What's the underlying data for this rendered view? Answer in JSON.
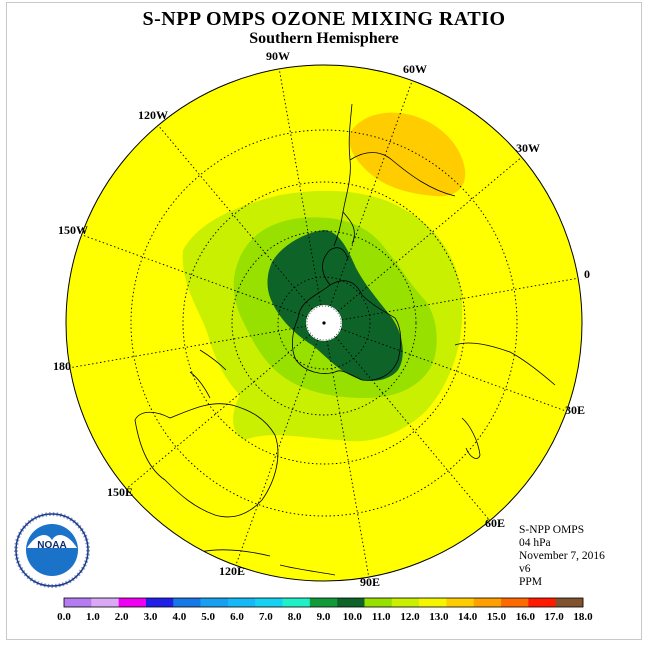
{
  "title": "S-NPP OMPS OZONE MIXING RATIO",
  "subtitle": "Southern Hemisphere",
  "longitude_labels": [
    {
      "lon": "90W"
    },
    {
      "lon": "60W"
    },
    {
      "lon": "30W"
    },
    {
      "lon": "0"
    },
    {
      "lon": "30E"
    },
    {
      "lon": "60E"
    },
    {
      "lon": "90E"
    },
    {
      "lon": "120E"
    },
    {
      "lon": "150E"
    },
    {
      "lon": "180"
    },
    {
      "lon": "150W"
    },
    {
      "lon": "120W"
    }
  ],
  "info": {
    "instrument": "S-NPP OMPS",
    "pressure_level": "04 hPa",
    "date": "November 7, 2016",
    "version": "v6",
    "units": "PPM"
  },
  "logo_text": "NOAA",
  "colorbar": {
    "labels": [
      "0.0",
      "1.0",
      "2.0",
      "3.0",
      "4.0",
      "5.0",
      "6.0",
      "7.0",
      "8.0",
      "9.0",
      "10.0",
      "11.0",
      "12.0",
      "13.0",
      "14.0",
      "15.0",
      "16.0",
      "17.0",
      "18.0"
    ],
    "colors": [
      "#b57cf2",
      "#d9a9f5",
      "#f000f0",
      "#2020e8",
      "#1478e6",
      "#18a0f0",
      "#14b9f5",
      "#16d2f0",
      "#20f0c8",
      "#119a38",
      "#0e6428",
      "#98e000",
      "#c8f000",
      "#f5f500",
      "#ffcc00",
      "#ffa000",
      "#ff6a00",
      "#ff1a00",
      "#80522e"
    ]
  },
  "map": {
    "background_color": "#ffff00",
    "ozone_levels_ppm": {
      "outer": 13,
      "light_ring": 12,
      "mid_ring": 11,
      "core": 10,
      "max_region": 14
    }
  }
}
